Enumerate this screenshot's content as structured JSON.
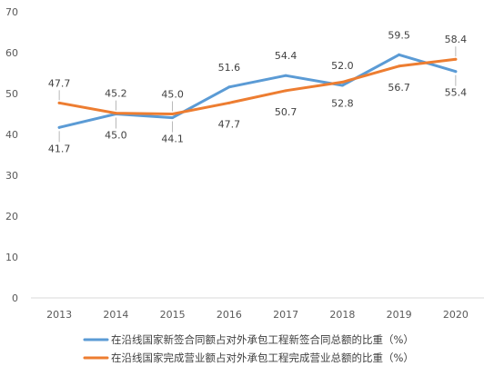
{
  "chart_data": {
    "type": "line",
    "title": "",
    "xlabel": "",
    "ylabel": "",
    "categories": [
      "2013",
      "2014",
      "2015",
      "2016",
      "2017",
      "2018",
      "2019",
      "2020"
    ],
    "ylim": [
      0,
      70
    ],
    "yticks": [
      "0",
      "10",
      "20",
      "30",
      "40",
      "50",
      "60",
      "70"
    ],
    "grid": false,
    "legend_position": "bottom",
    "series": [
      {
        "name": "在沿线国家新签合同额占对外承包工程新签合同总额的比重（%）",
        "color": "#5B9BD5",
        "values": [
          41.7,
          45.0,
          44.1,
          51.6,
          54.4,
          52.0,
          59.5,
          55.4
        ],
        "labels": [
          "41.7",
          "45.0",
          "44.1",
          "51.6",
          "54.4",
          "52.0",
          "59.5",
          "55.4"
        ]
      },
      {
        "name": "在沿线国家完成营业额占对外承包工程完成营业总额的比重（%）",
        "color": "#ED7D31",
        "values": [
          47.7,
          45.2,
          45.0,
          47.7,
          50.7,
          52.8,
          56.7,
          58.4
        ],
        "labels": [
          "47.7",
          "45.2",
          "45.0",
          "47.7",
          "50.7",
          "52.8",
          "56.7",
          "58.4"
        ]
      }
    ]
  }
}
